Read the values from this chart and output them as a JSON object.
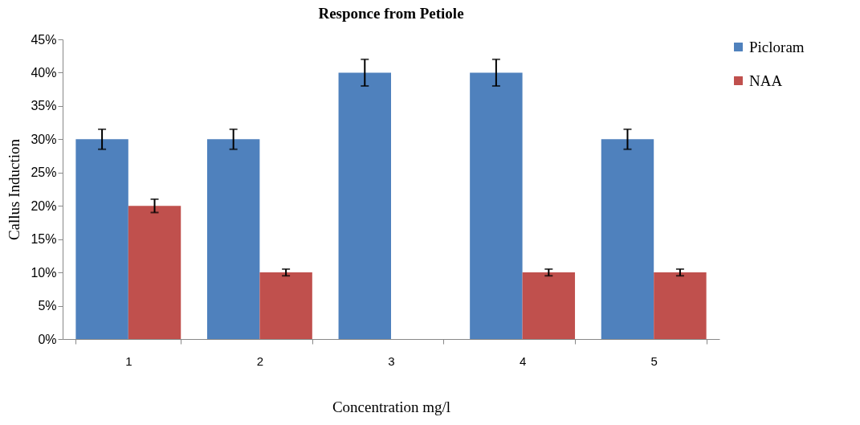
{
  "chart_data": {
    "type": "bar",
    "title": "Responce from Petiole",
    "xlabel": "Concentration mg/l",
    "ylabel": "Callus Induction",
    "categories": [
      "1",
      "2",
      "3",
      "4",
      "5"
    ],
    "series": [
      {
        "name": "Picloram",
        "color": "#4f81bd",
        "values": [
          30,
          30,
          40,
          40,
          30
        ],
        "errors": [
          1.5,
          1.5,
          2,
          2,
          1.5
        ]
      },
      {
        "name": "NAA",
        "color": "#c0504d",
        "values": [
          20,
          10,
          null,
          10,
          10
        ],
        "errors": [
          1,
          0.5,
          null,
          0.5,
          0.5
        ]
      }
    ],
    "ylim": [
      0,
      45
    ],
    "yticks": [
      {
        "value": 0,
        "label": "0%"
      },
      {
        "value": 5,
        "label": "5%"
      },
      {
        "value": 10,
        "label": "10%"
      },
      {
        "value": 15,
        "label": "15%"
      },
      {
        "value": 20,
        "label": "20%"
      },
      {
        "value": 25,
        "label": "25%"
      },
      {
        "value": 30,
        "label": "30%"
      },
      {
        "value": 35,
        "label": "35%"
      },
      {
        "value": 40,
        "label": "40%"
      },
      {
        "value": 45,
        "label": "45%"
      }
    ],
    "grid": false,
    "legend": "right"
  }
}
